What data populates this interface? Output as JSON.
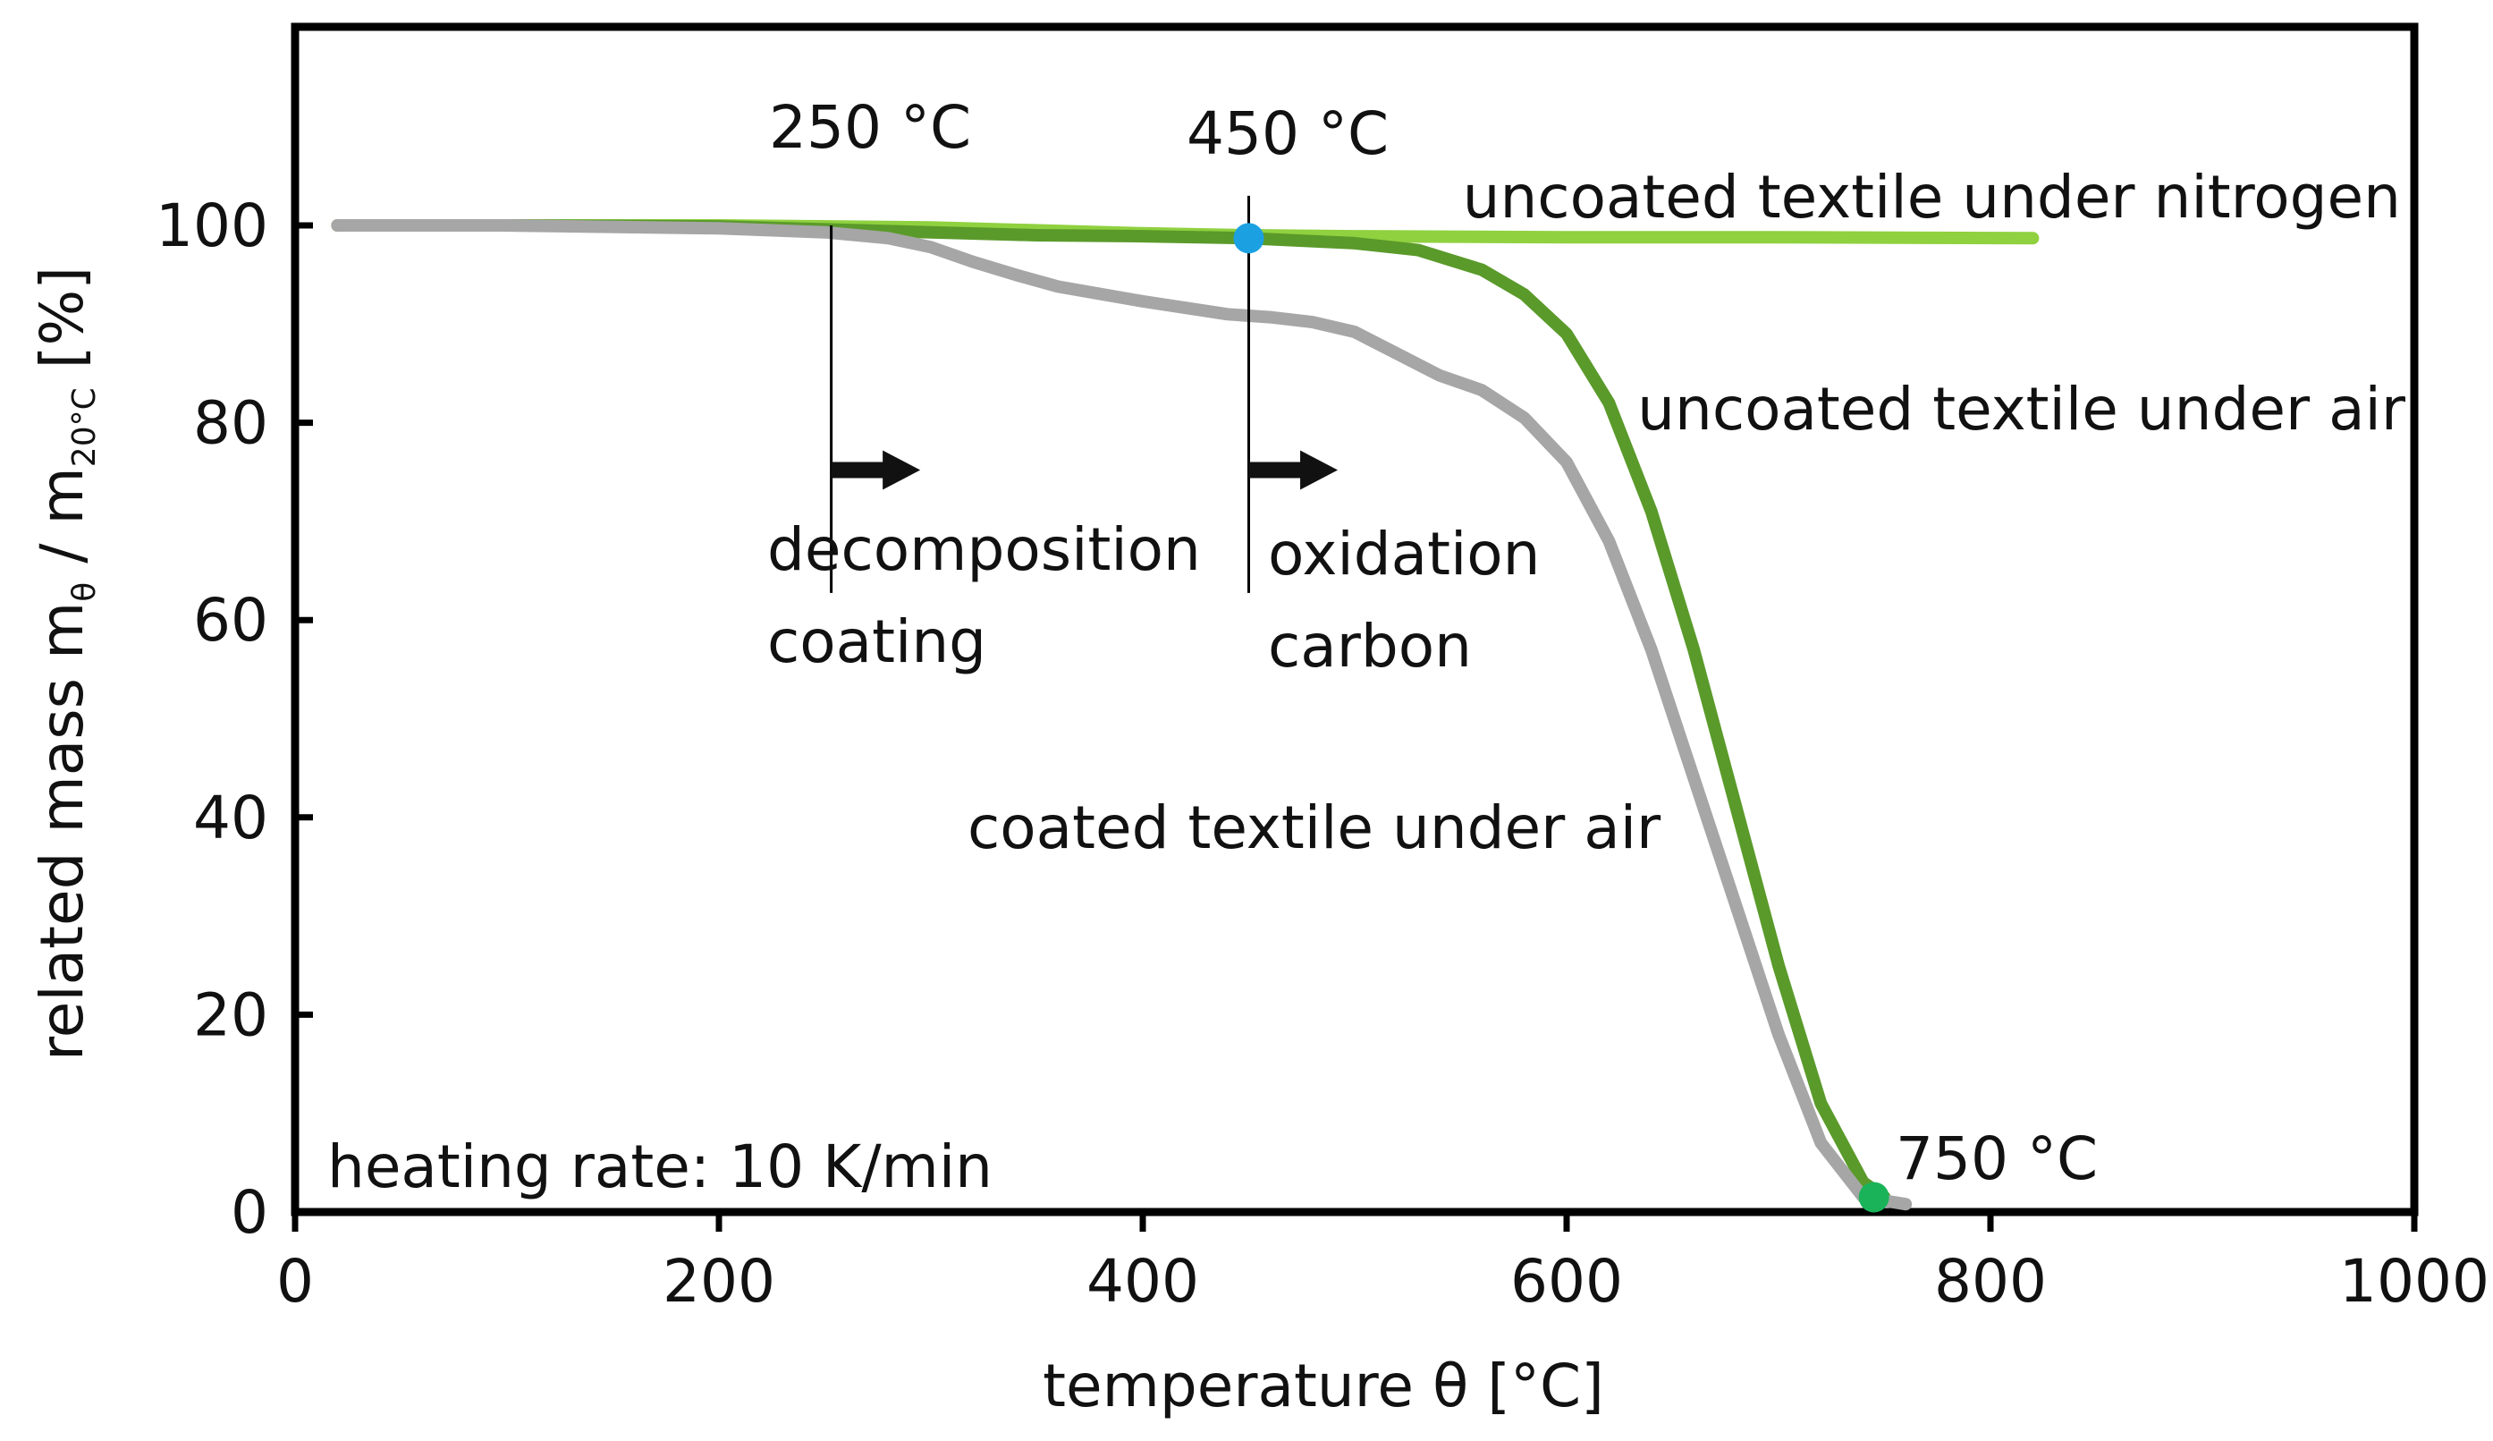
{
  "chart_data": {
    "type": "line",
    "xlabel": "temperature θ [°C]",
    "ylabel": {
      "main": "related mass m",
      "sub1": "θ",
      "mid": " / m",
      "sub2": "20°C",
      "end": " [%]"
    },
    "xlim": [
      0,
      1000
    ],
    "ylim": [
      0,
      120
    ],
    "xticks": [
      "0",
      "200",
      "400",
      "600",
      "800",
      "1000"
    ],
    "yticks": [
      "0",
      "20",
      "40",
      "60",
      "80",
      "100"
    ],
    "grid": false,
    "series": [
      {
        "name": "uncoated textile under nitrogen",
        "color": "#8fd13f",
        "x": [
          20,
          100,
          200,
          300,
          400,
          450,
          500,
          600,
          700,
          820
        ],
        "y": [
          100,
          100,
          100,
          99.8,
          99.2,
          99,
          98.9,
          98.8,
          98.8,
          98.7
        ]
      },
      {
        "name": "uncoated textile under air",
        "color": "#5a9a2a",
        "x": [
          20,
          100,
          200,
          250,
          300,
          350,
          400,
          450,
          500,
          530,
          560,
          580,
          600,
          620,
          640,
          660,
          680,
          700,
          720,
          740,
          750
        ],
        "y": [
          100,
          100,
          99.9,
          99.6,
          99.3,
          99,
          98.9,
          98.7,
          98.2,
          97.5,
          95.5,
          93,
          89,
          82,
          71,
          57,
          41,
          25,
          11,
          3,
          1.5
        ]
      },
      {
        "name": "coated textile under air",
        "color": "#a6a6a6",
        "x": [
          20,
          100,
          200,
          250,
          280,
          300,
          320,
          340,
          360,
          400,
          440,
          460,
          480,
          500,
          520,
          540,
          560,
          580,
          600,
          620,
          640,
          660,
          680,
          700,
          720,
          740,
          760
        ],
        "y": [
          100,
          100,
          99.7,
          99.3,
          98.7,
          97.8,
          96.3,
          95,
          93.8,
          92.3,
          91,
          90.7,
          90.2,
          89.2,
          87,
          84.8,
          83.3,
          80.5,
          76,
          68,
          57,
          44,
          31,
          18,
          7,
          1.5,
          0.8
        ]
      }
    ],
    "annotations": {
      "t250": "250 °C",
      "t450": "450 °C",
      "t750": "750 °C",
      "decomp_line1": "decomposition",
      "decomp_line2": "coating",
      "oxid_line1": "oxidation",
      "oxid_line2": "carbon",
      "heating_rate": "heating rate: 10 K/min",
      "label_nitrogen": "uncoated textile under nitrogen",
      "label_uncoated_air": "uncoated textile under air",
      "label_coated_air": "coated textile under air"
    },
    "markers": [
      {
        "x": 450,
        "y": 98.7,
        "color": "#1ba1e2"
      },
      {
        "x": 745,
        "y": 1.5,
        "color": "#1ab35a"
      }
    ],
    "vlines": [
      {
        "x": 253,
        "y_from": 70,
        "y_to": 100
      },
      {
        "x": 450,
        "y_from": 70,
        "y_to": 103
      }
    ],
    "arrows": [
      {
        "x_from": 253,
        "x_to": 295,
        "y": 75.2
      },
      {
        "x_from": 450,
        "x_to": 492,
        "y": 75.2
      }
    ]
  }
}
